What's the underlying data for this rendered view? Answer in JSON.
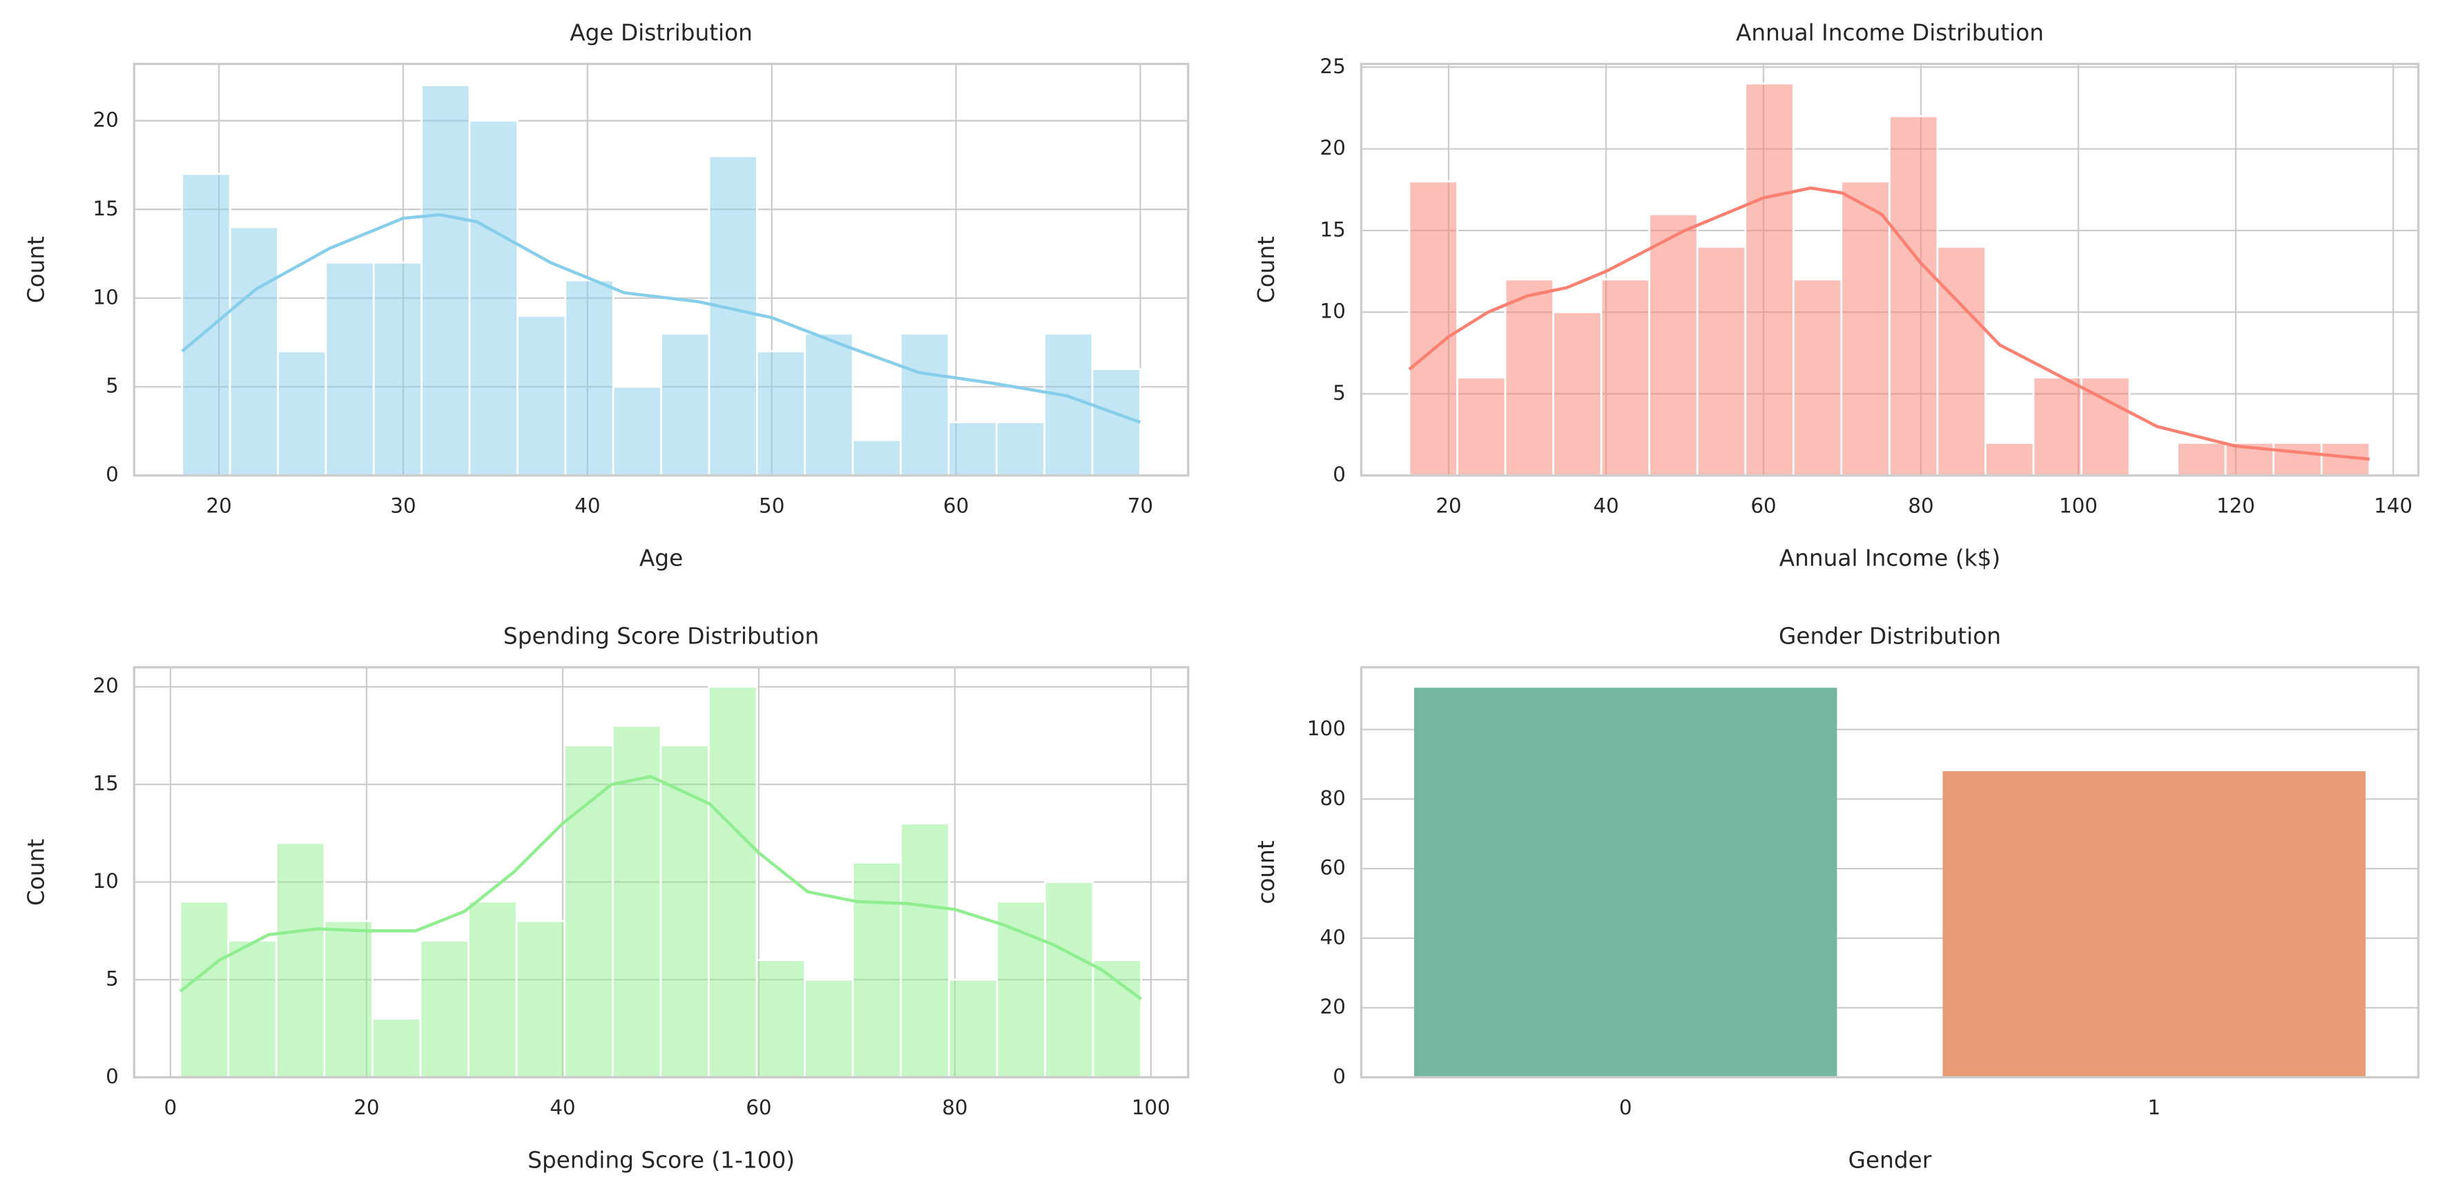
{
  "chart_data": [
    {
      "type": "histogram",
      "title": "Age Distribution",
      "x_label": "Age",
      "y_label": "Count",
      "bins": [
        18,
        20.6,
        23.2,
        25.8,
        28.4,
        31,
        33.6,
        36.2,
        38.8,
        41.4,
        44,
        46.6,
        49.2,
        51.8,
        54.4,
        57,
        59.6,
        62.2,
        64.8,
        67.4,
        70
      ],
      "values": [
        17,
        14,
        7,
        12,
        12,
        22,
        20,
        9,
        11,
        5,
        8,
        18,
        7,
        8,
        2,
        8,
        3,
        3,
        8,
        6
      ],
      "color": "#87ceeb",
      "kde": {
        "x": [
          18,
          22,
          26,
          30,
          32,
          34,
          38,
          42,
          46,
          50,
          54,
          58,
          62,
          66,
          70
        ],
        "values": [
          7,
          10.5,
          12.8,
          14.5,
          14.7,
          14.3,
          12,
          10.3,
          9.8,
          8.9,
          7.3,
          5.8,
          5.2,
          4.5,
          3
        ]
      },
      "xlim": [
        15.4,
        72.6
      ],
      "xticks": [
        20,
        30,
        40,
        50,
        60,
        70
      ],
      "ylim": [
        0,
        23.2
      ],
      "yticks": [
        0,
        5,
        10,
        15,
        20
      ],
      "grid": true
    },
    {
      "type": "histogram",
      "title": "Annual Income Distribution",
      "x_label": "Annual Income (k$)",
      "y_label": "Count",
      "bins": [
        15,
        21.1,
        27.2,
        33.3,
        39.4,
        45.5,
        51.6,
        57.7,
        63.8,
        69.9,
        76,
        82.1,
        88.2,
        94.3,
        100.4,
        106.5,
        112.6,
        118.7,
        124.8,
        130.9,
        137
      ],
      "values": [
        18,
        6,
        12,
        10,
        12,
        16,
        14,
        24,
        12,
        18,
        22,
        14,
        2,
        6,
        6,
        0,
        2,
        2,
        2,
        2
      ],
      "color": "#fa8072",
      "kde": {
        "x": [
          15,
          20,
          25,
          30,
          35,
          40,
          50,
          60,
          66,
          70,
          75,
          80,
          90,
          100,
          110,
          120,
          137
        ],
        "values": [
          6.5,
          8.5,
          10,
          11,
          11.5,
          12.5,
          15,
          17,
          17.6,
          17.3,
          16,
          13,
          8,
          5.5,
          3,
          1.8,
          1
        ]
      },
      "xlim": [
        8.9,
        143.2
      ],
      "xticks": [
        20,
        40,
        60,
        80,
        100,
        120,
        140
      ],
      "ylim": [
        0,
        25.2
      ],
      "yticks": [
        0,
        5,
        10,
        15,
        20,
        25
      ],
      "grid": true
    },
    {
      "type": "histogram",
      "title": "Spending Score Distribution",
      "x_label": "Spending Score (1-100)",
      "y_label": "Count",
      "bins": [
        1,
        5.9,
        10.8,
        15.7,
        20.6,
        25.5,
        30.4,
        35.3,
        40.2,
        45.1,
        50,
        54.9,
        59.8,
        64.7,
        69.6,
        74.5,
        79.4,
        84.3,
        89.2,
        94.1,
        99
      ],
      "values": [
        9,
        7,
        12,
        8,
        3,
        7,
        9,
        8,
        17,
        18,
        17,
        20,
        6,
        5,
        11,
        13,
        5,
        9,
        10,
        6
      ],
      "color": "#90ee90",
      "kde": {
        "x": [
          1,
          5,
          10,
          15,
          20,
          25,
          30,
          35,
          40,
          45,
          49,
          55,
          60,
          65,
          70,
          75,
          80,
          85,
          90,
          95,
          99
        ],
        "values": [
          4.4,
          6,
          7.3,
          7.6,
          7.5,
          7.5,
          8.5,
          10.5,
          13,
          15,
          15.4,
          14,
          11.5,
          9.5,
          9,
          8.9,
          8.6,
          7.8,
          6.8,
          5.5,
          4
        ]
      },
      "xlim": [
        -3.7,
        103.8
      ],
      "xticks": [
        0,
        20,
        40,
        60,
        80,
        100
      ],
      "ylim": [
        0,
        21
      ],
      "yticks": [
        0,
        5,
        10,
        15,
        20
      ],
      "grid": true
    },
    {
      "type": "bar",
      "title": "Gender Distribution",
      "x_label": "Gender",
      "y_label": "count",
      "categories": [
        "0",
        "1"
      ],
      "values": [
        112,
        88
      ],
      "colors": [
        "#75b6a0",
        "#e89a75"
      ],
      "ylim": [
        0,
        117.9
      ],
      "yticks": [
        0,
        20,
        40,
        60,
        80,
        100
      ],
      "grid": true
    }
  ]
}
